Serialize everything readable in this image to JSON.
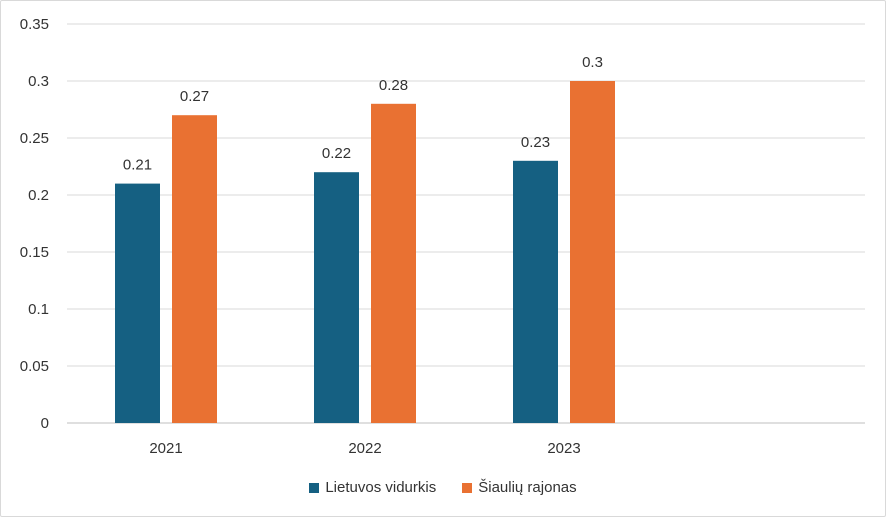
{
  "chart_data": {
    "type": "bar",
    "categories": [
      "2021",
      "2022",
      "2023"
    ],
    "series": [
      {
        "name": "Lietuvos vidurkis",
        "values": [
          0.21,
          0.22,
          0.23
        ],
        "labels": [
          "0.21",
          "0.22",
          "0.23"
        ],
        "color": "#156082"
      },
      {
        "name": "Šiaulių rajonas",
        "values": [
          0.27,
          0.28,
          0.3
        ],
        "labels": [
          "0.27",
          "0.28",
          "0.3"
        ],
        "color": "#E97132"
      }
    ],
    "y_ticks": [
      "0",
      "0.05",
      "0.1",
      "0.15",
      "0.2",
      "0.25",
      "0.3",
      "0.35"
    ],
    "ylim": [
      0,
      0.35
    ],
    "grid": true,
    "legend_position": "bottom",
    "title": "",
    "xlabel": "",
    "ylabel": ""
  }
}
